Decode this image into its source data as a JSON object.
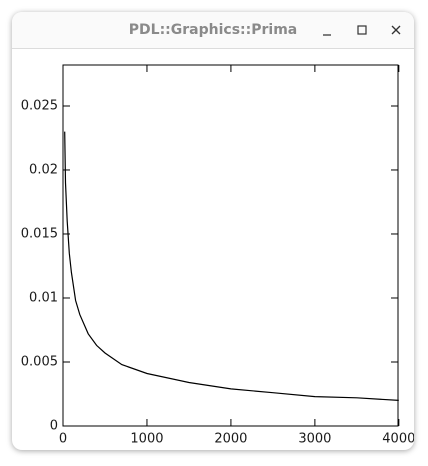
{
  "window_title": "PDL::Graphics::Prima",
  "chart_data": {
    "type": "line",
    "x": [
      20,
      30,
      50,
      75,
      100,
      150,
      200,
      300,
      400,
      500,
      700,
      1000,
      1500,
      2000,
      2500,
      3000,
      3500,
      4000
    ],
    "series": [
      {
        "color": "#000000",
        "values": [
          0.023,
          0.019,
          0.016,
          0.0135,
          0.012,
          0.0098,
          0.0087,
          0.0072,
          0.0063,
          0.0057,
          0.0048,
          0.0041,
          0.0034,
          0.0029,
          0.0026,
          0.0023,
          0.0022,
          0.002
        ]
      }
    ],
    "xlim": [
      0,
      3990
    ],
    "xticks": [
      0,
      1000,
      2000,
      3000,
      4000
    ],
    "ylim": [
      0,
      0.0282
    ],
    "yticks": [
      0,
      0.005,
      0.01,
      0.015,
      0.02,
      0.025
    ]
  }
}
